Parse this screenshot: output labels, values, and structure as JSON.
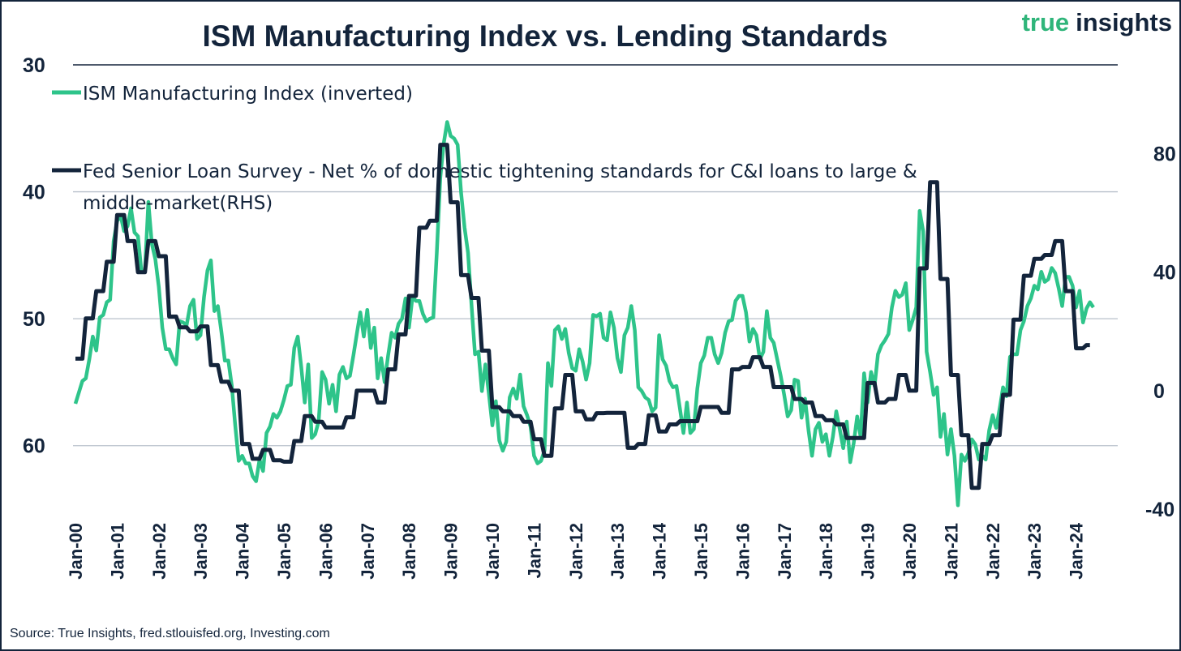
{
  "chart_data": {
    "type": "line",
    "title": "ISM Manufacturing Index vs. Lending Standards",
    "brand": {
      "part1": "true",
      "part2": "insights"
    },
    "source": "Source: True Insights, fred.stlouisfed.org, Investing.com",
    "colors": {
      "ism": "#2ec48a",
      "fed": "#13243b",
      "text": "#13243b",
      "grid": "#b8c0cb",
      "brand_green": "#2fb57a"
    },
    "x_start": "Jan-2000",
    "x_tick_labels": [
      "Jan-00",
      "Jan-01",
      "Jan-02",
      "Jan-03",
      "Jan-04",
      "Jan-05",
      "Jan-06",
      "Jan-07",
      "Jan-08",
      "Jan-09",
      "Jan-10",
      "Jan-11",
      "Jan-12",
      "Jan-13",
      "Jan-14",
      "Jan-15",
      "Jan-16",
      "Jan-17",
      "Jan-18",
      "Jan-19",
      "Jan-20",
      "Jan-21",
      "Jan-22",
      "Jan-23",
      "Jan-24"
    ],
    "y_left": {
      "ticks": [
        "30",
        "40",
        "50",
        "60"
      ],
      "tick_values": [
        30,
        40,
        50,
        60
      ],
      "ylim": [
        30,
        65
      ],
      "inverted": true
    },
    "y_right": {
      "ticks": [
        "80",
        "40",
        "0",
        "-40"
      ],
      "tick_values": [
        80,
        40,
        0,
        -40
      ],
      "ylim": [
        -40,
        110
      ]
    },
    "grid": true,
    "legend_placement": "top-left",
    "series": [
      {
        "name": "ISM Manufacturing Index (inverted)",
        "axis": "left",
        "frequency": "monthly",
        "values": [
          56.7,
          55.8,
          54.9,
          54.7,
          53.2,
          51.4,
          52.5,
          49.9,
          49.7,
          48.7,
          48.5,
          43.9,
          42.3,
          41.9,
          43.1,
          42.7,
          41.3,
          43.2,
          43.5,
          46.3,
          46.2,
          40.8,
          44.1,
          45.3,
          47.5,
          50.7,
          52.4,
          52.4,
          53.1,
          53.6,
          50.2,
          50.3,
          50.5,
          49.0,
          48.5,
          51.6,
          51.3,
          48.3,
          46.2,
          45.4,
          49.4,
          49.0,
          51.0,
          53.3,
          53.3,
          55.3,
          58.4,
          61.2,
          60.8,
          61.4,
          61.4,
          62.4,
          62.8,
          61.1,
          62.0,
          59.0,
          58.5,
          57.5,
          57.8,
          57.3,
          56.4,
          55.3,
          55.2,
          52.3,
          51.4,
          53.8,
          56.6,
          53.6,
          59.4,
          59.1,
          58.1,
          54.2,
          54.8,
          56.7,
          55.2,
          57.3,
          54.4,
          53.8,
          54.7,
          54.5,
          52.9,
          51.2,
          49.5,
          51.4,
          49.3,
          52.3,
          50.7,
          54.7,
          53.1,
          55.0,
          52.9,
          51.1,
          51.5,
          50.4,
          50.0,
          48.4,
          50.7,
          48.3,
          48.6,
          48.6,
          49.6,
          50.2,
          50.0,
          49.9,
          44.8,
          38.9,
          36.2,
          34.5,
          35.6,
          35.8,
          36.3,
          40.1,
          42.8,
          44.8,
          48.9,
          52.8,
          52.6,
          55.7,
          53.6,
          55.9,
          58.4,
          56.5,
          59.6,
          60.4,
          59.7,
          56.2,
          55.5,
          56.3,
          54.4,
          56.9,
          57.6,
          58.5,
          60.8,
          61.4,
          61.2,
          60.4,
          53.5,
          55.3,
          50.9,
          50.6,
          51.6,
          50.8,
          52.7,
          53.9,
          54.1,
          52.4,
          53.4,
          54.8,
          53.5,
          49.7,
          49.8,
          49.6,
          51.5,
          51.7,
          49.5,
          50.7,
          53.1,
          54.2,
          51.3,
          50.7,
          49.0,
          50.9,
          55.4,
          55.7,
          56.2,
          56.4,
          57.3,
          57.0,
          51.3,
          53.2,
          53.7,
          54.9,
          55.4,
          55.3,
          57.1,
          59.0,
          56.6,
          59.0,
          58.7,
          55.5,
          53.5,
          52.9,
          51.5,
          51.5,
          52.8,
          53.5,
          52.7,
          51.1,
          50.2,
          50.1,
          48.6,
          48.2,
          48.2,
          49.5,
          51.8,
          50.8,
          51.3,
          53.2,
          52.6,
          49.4,
          51.5,
          51.9,
          53.2,
          54.5,
          56.0,
          57.7,
          57.2,
          54.8,
          54.9,
          57.8,
          56.3,
          58.8,
          60.8,
          58.7,
          58.2,
          59.7,
          59.1,
          60.8,
          59.3,
          57.3,
          58.7,
          60.2,
          58.1,
          61.3,
          59.8,
          57.7,
          59.3,
          54.3,
          56.6,
          54.2,
          55.3,
          52.8,
          52.1,
          51.7,
          51.2,
          49.1,
          47.8,
          48.3,
          48.1,
          47.2,
          50.9,
          50.1,
          49.1,
          41.5,
          43.1,
          52.6,
          54.2,
          56.0,
          55.4,
          59.3,
          57.5,
          60.7,
          58.7,
          60.8,
          64.7,
          60.7,
          61.2,
          60.6,
          59.5,
          59.9,
          61.1,
          60.8,
          61.1,
          58.8,
          57.6,
          58.6,
          57.1,
          55.4,
          56.1,
          53.0,
          52.8,
          52.8,
          50.9,
          50.2,
          49.0,
          48.4,
          47.4,
          47.7,
          46.3,
          47.1,
          46.9,
          46.0,
          46.4,
          47.6,
          49.0,
          46.7,
          46.7,
          47.4,
          49.1,
          47.8,
          50.3,
          49.2,
          48.7,
          49.1
        ]
      },
      {
        "name": "Fed Senior Loan Survey - Net % of domestic tightening standards for C&I loans to large & middle-market(RHS)",
        "legend_lines": [
          "Fed Senior Loan Survey - Net % of domestic tightening standards for C&I loans to large &",
          "middle-market(RHS)"
        ],
        "axis": "right",
        "frequency": "quarterly",
        "values": [
          10.8,
          24.4,
          33.6,
          43.5,
          59.3,
          50.5,
          40,
          50.5,
          45.4,
          25,
          21.4,
          20,
          21.7,
          8.6,
          3,
          0,
          -18,
          -23,
          -20,
          -23.5,
          -24,
          -17,
          -8.6,
          -10.5,
          -12.4,
          -12.4,
          -9,
          0,
          0,
          -4,
          7.2,
          19,
          32,
          55,
          57.4,
          83,
          63.6,
          39,
          31.3,
          13.5,
          -5.6,
          -7,
          -8.6,
          -10.5,
          -16.4,
          -22,
          -6,
          5.3,
          -7,
          -9.7,
          -7.6,
          -7.5,
          -7.5,
          -19.3,
          -18,
          -8.3,
          -13.8,
          -11.4,
          -10.3,
          -10.3,
          -5.5,
          -5.5,
          -7.5,
          7.2,
          8,
          11.3,
          8,
          1.2,
          1.2,
          -2.8,
          -4,
          -8.6,
          -10,
          -11.4,
          -16,
          -16,
          2.6,
          -4,
          -2.8,
          5.3,
          0,
          41.3,
          70.4,
          37.7,
          5.3,
          -15,
          -32.8,
          -18,
          -15,
          -1.4,
          24,
          38.8,
          44.5,
          45.8,
          50.5,
          33.6,
          14.3,
          15.4
        ]
      }
    ]
  }
}
